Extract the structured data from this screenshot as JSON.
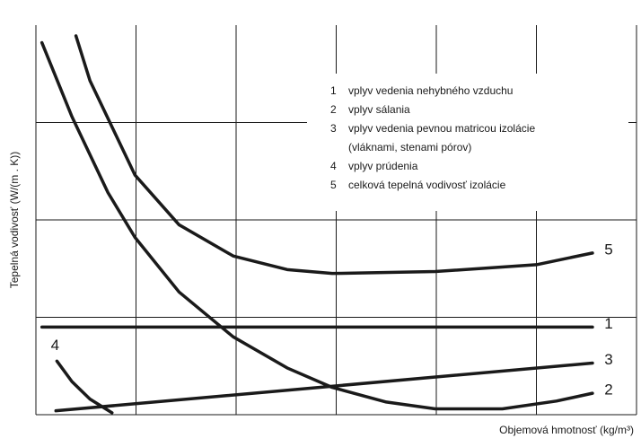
{
  "chart_data": {
    "type": "line",
    "y_label": "Tepelná vodivosť (W/(m . K))",
    "x_label": "Objemová hmotnosť (kg/m³)",
    "xlim": [
      0,
      6
    ],
    "ylim": [
      0,
      4
    ],
    "grid": true,
    "color": "#1a1a1a",
    "series": [
      {
        "name": "1",
        "x": [
          0.06,
          5.56
        ],
        "values": [
          0.9,
          0.9
        ]
      },
      {
        "name": "2",
        "x": [
          0.06,
          0.36,
          0.72,
          0.99,
          1.43,
          1.97,
          2.51,
          2.96,
          3.5,
          3.99,
          4.66,
          5.2,
          5.56
        ],
        "values": [
          3.82,
          3.06,
          2.28,
          1.82,
          1.26,
          0.8,
          0.48,
          0.28,
          0.13,
          0.06,
          0.06,
          0.14,
          0.22
        ]
      },
      {
        "name": "3",
        "x": [
          0.2,
          5.56
        ],
        "values": [
          0.04,
          0.53
        ]
      },
      {
        "name": "4",
        "x": [
          0.21,
          0.36,
          0.54,
          0.76
        ],
        "values": [
          0.55,
          0.34,
          0.16,
          0.02
        ]
      },
      {
        "name": "5",
        "x": [
          0.4,
          0.54,
          0.99,
          1.43,
          1.97,
          2.51,
          2.96,
          3.99,
          5.0,
          5.56
        ],
        "values": [
          3.89,
          3.43,
          2.46,
          1.95,
          1.63,
          1.49,
          1.45,
          1.47,
          1.54,
          1.66
        ]
      }
    ],
    "legend": [
      {
        "number": "1",
        "lines": [
          "vplyv vedenia nehybného vzduchu"
        ]
      },
      {
        "number": "2",
        "lines": [
          "vplyv sálania"
        ]
      },
      {
        "number": "3",
        "lines": [
          "vplyv vedenia pevnou matricou izolácie",
          "(vláknami, stenami pórov)"
        ]
      },
      {
        "number": "4",
        "lines": [
          "vplyv prúdenia"
        ]
      },
      {
        "number": "5",
        "lines": [
          "celková tepelná vodivosť izolácie"
        ]
      }
    ]
  }
}
